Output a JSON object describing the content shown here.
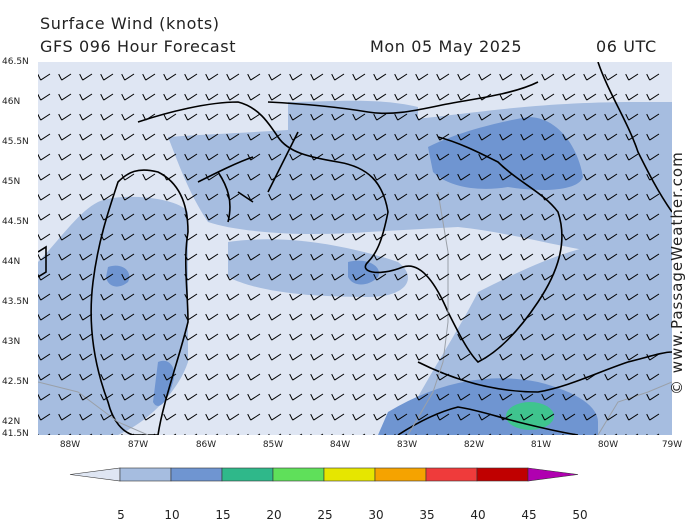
{
  "header": {
    "title": "Surface Wind (knots)",
    "subtitle": "GFS 096 Hour Forecast",
    "date": "Mon 05 May 2025",
    "time": "06 UTC"
  },
  "credit": "© www.PassageWeather.com",
  "map": {
    "lat_labels": [
      "46.5N",
      "46N",
      "45.5N",
      "45N",
      "44.5N",
      "44N",
      "43.5N",
      "43N",
      "42.5N",
      "42N",
      "41.5N"
    ],
    "lon_labels": [
      "88W",
      "87W",
      "86W",
      "85W",
      "84W",
      "83W",
      "82W",
      "81W",
      "80W",
      "79W"
    ],
    "colors": {
      "background": "#dfe6f3",
      "band_10_15": "#a6bde0",
      "band_15_20": "#6f95d1",
      "band_20_25": "#3fc48e",
      "coast": "#000000",
      "border": "#9aa0a8"
    }
  },
  "legend": {
    "labels": [
      "5",
      "10",
      "15",
      "20",
      "25",
      "30",
      "35",
      "40",
      "45",
      "50"
    ],
    "colors": [
      "#dfe6f3",
      "#a6bde0",
      "#6f95d1",
      "#2fb88a",
      "#5fe05a",
      "#e6e600",
      "#f5a300",
      "#ef3b3b",
      "#c00000",
      "#b000b0"
    ]
  }
}
